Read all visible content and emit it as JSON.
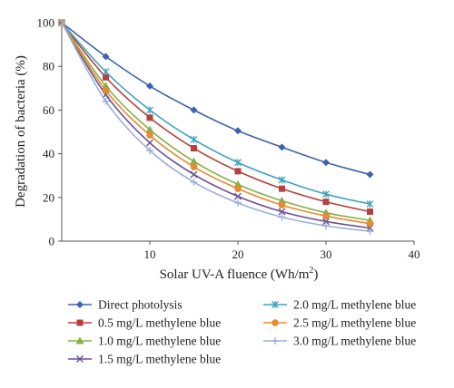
{
  "chart_data": {
    "type": "line",
    "xlabel": "Solar UV-A fluence (Wh/m",
    "xlabel_sup": "2",
    "xlabel_end": ")",
    "ylabel": "Degradation of bacteria (%)",
    "xlim": [
      0,
      40
    ],
    "ylim": [
      0,
      100
    ],
    "x_ticks": [
      10,
      20,
      30,
      40
    ],
    "y_ticks": [
      0,
      20,
      40,
      60,
      80,
      100
    ],
    "grid": false,
    "legend_position": "bottom",
    "x": [
      0,
      5,
      10,
      15,
      20,
      25,
      30,
      35
    ],
    "series": [
      {
        "name": "Direct photolysis",
        "color": "#3e63a8",
        "marker": "diamond",
        "values": [
          100,
          84.5,
          71,
          60,
          50.5,
          43,
          36,
          30.5
        ]
      },
      {
        "name": "0.5 mg/L methylene blue",
        "color": "#b5403d",
        "marker": "square",
        "values": [
          100,
          75,
          56.5,
          42.5,
          32,
          24,
          18,
          13.5
        ]
      },
      {
        "name": "1.0 mg/L methylene blue",
        "color": "#8aad45",
        "marker": "triangle",
        "values": [
          100,
          71,
          51,
          36.5,
          26,
          18.5,
          13,
          9.5
        ]
      },
      {
        "name": "1.5 mg/L methylene blue",
        "color": "#6a4f93",
        "marker": "x",
        "values": [
          100,
          67,
          45,
          30.5,
          20.5,
          13.5,
          9,
          6
        ]
      },
      {
        "name": "2.0 mg/L methylene blue",
        "color": "#3ea3bf",
        "marker": "star",
        "values": [
          100,
          77.5,
          60,
          46.5,
          36,
          28,
          21.5,
          17
        ]
      },
      {
        "name": "2.5 mg/L methylene blue",
        "color": "#e58b32",
        "marker": "circle",
        "values": [
          100,
          69,
          48.5,
          34,
          24,
          16.5,
          11.5,
          8
        ]
      },
      {
        "name": "3.0 mg/L methylene blue",
        "color": "#9ab0d8",
        "marker": "plus",
        "values": [
          100,
          64,
          41.5,
          27,
          17.5,
          11,
          7,
          4.5
        ]
      }
    ]
  }
}
